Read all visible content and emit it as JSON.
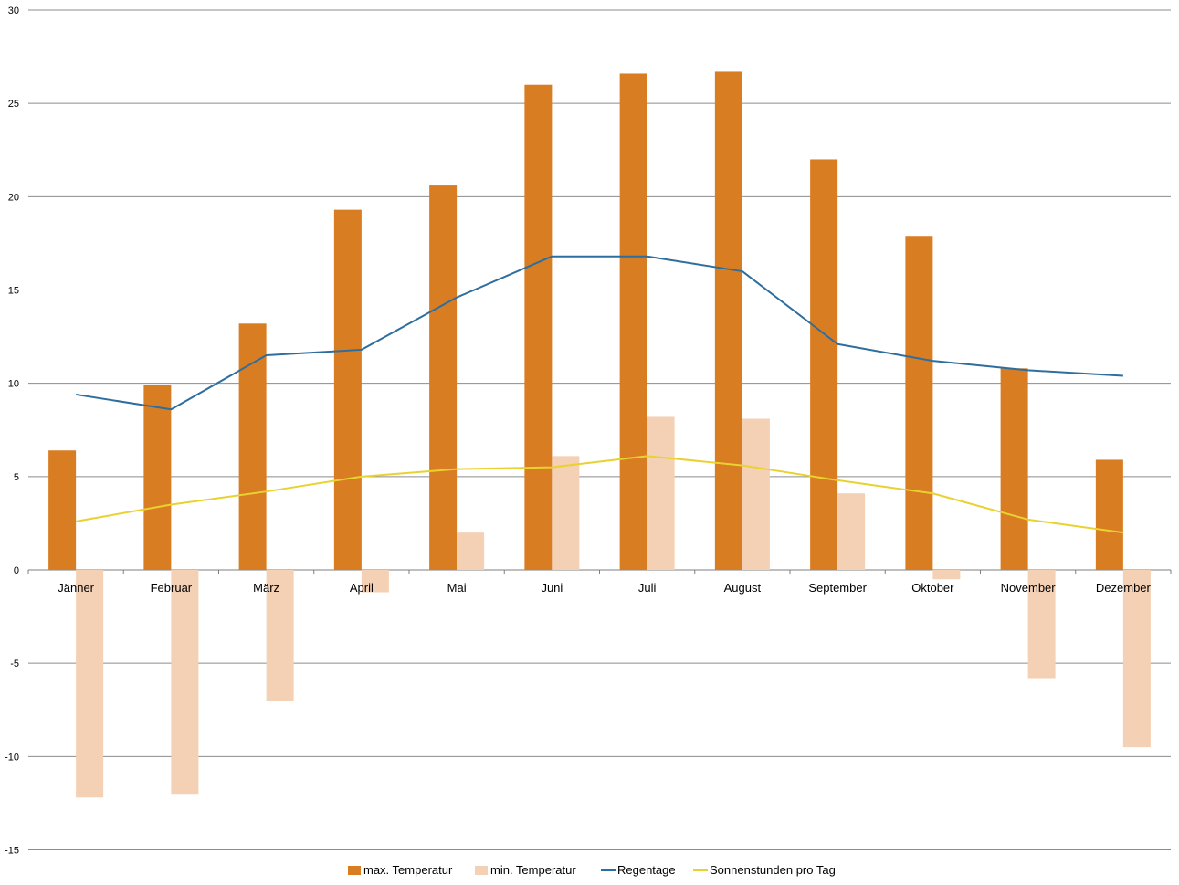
{
  "chart_data": {
    "type": "bar",
    "categories": [
      "Jänner",
      "Februar",
      "März",
      "April",
      "Mai",
      "Juni",
      "Juli",
      "August",
      "September",
      "Oktober",
      "November",
      "Dezember"
    ],
    "series": [
      {
        "name": "max. Temperatur",
        "kind": "bar",
        "color": "#d97d22",
        "values": [
          6.4,
          9.9,
          13.2,
          19.3,
          20.6,
          26.0,
          26.6,
          26.7,
          22.0,
          17.9,
          10.8,
          5.9
        ]
      },
      {
        "name": "min. Temperatur",
        "kind": "bar",
        "color": "#f4d0b4",
        "values": [
          -12.2,
          -12.0,
          -7.0,
          -1.2,
          2.0,
          6.1,
          8.2,
          8.1,
          4.1,
          -0.5,
          -5.8,
          -9.5
        ]
      },
      {
        "name": "Regentage",
        "kind": "line",
        "color": "#2e6e9e",
        "values": [
          9.4,
          8.6,
          11.5,
          11.8,
          14.6,
          16.8,
          16.8,
          16.0,
          12.1,
          11.2,
          10.7,
          10.4
        ]
      },
      {
        "name": "Sonnenstunden pro Tag",
        "kind": "line",
        "color": "#e8d230",
        "values": [
          2.6,
          3.5,
          4.2,
          5.0,
          5.4,
          5.5,
          6.1,
          5.6,
          4.8,
          4.1,
          2.7,
          2.0
        ]
      }
    ],
    "yticks": [
      "30",
      "25",
      "20",
      "15",
      "10",
      "5",
      "0",
      "-5",
      "-10",
      "-15"
    ],
    "ylim": [
      -15,
      30
    ],
    "grid": true,
    "legend": "bottom",
    "title": "",
    "xlabel": "",
    "ylabel": ""
  }
}
